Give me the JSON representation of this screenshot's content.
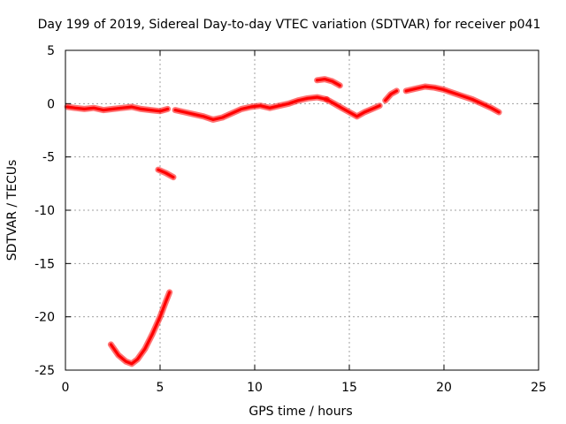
{
  "chart_data": {
    "type": "line",
    "title": "Day 199 of 2019, Sidereal Day-to-day VTEC variation (SDTVAR) for receiver p041",
    "xlabel": "GPS time / hours",
    "ylabel": "SDTVAR / TECUs",
    "xlim": [
      0,
      25
    ],
    "ylim": [
      -25,
      5
    ],
    "xticks": [
      0,
      5,
      10,
      15,
      20,
      25
    ],
    "yticks": [
      -25,
      -20,
      -15,
      -10,
      -5,
      0,
      5
    ],
    "grid": true,
    "color": "#ff0000",
    "series": [
      {
        "name": "main-trace-a",
        "x": [
          0.1,
          0.5,
          1.0,
          1.5,
          2.0,
          2.5,
          3.0,
          3.5,
          4.0,
          4.5,
          5.0,
          5.4
        ],
        "y": [
          -0.3,
          -0.4,
          -0.5,
          -0.4,
          -0.6,
          -0.5,
          -0.4,
          -0.3,
          -0.5,
          -0.6,
          -0.7,
          -0.5
        ]
      },
      {
        "name": "main-trace-b",
        "x": [
          5.8,
          6.3,
          6.8,
          7.3,
          7.8,
          8.3,
          8.8,
          9.3,
          9.8,
          10.3,
          10.8,
          11.3,
          11.8,
          12.3,
          12.8,
          13.3,
          13.8
        ],
        "y": [
          -0.6,
          -0.8,
          -1.0,
          -1.2,
          -1.5,
          -1.3,
          -0.9,
          -0.5,
          -0.3,
          -0.2,
          -0.4,
          -0.2,
          0.0,
          0.3,
          0.5,
          0.6,
          0.4
        ]
      },
      {
        "name": "main-trace-c",
        "x": [
          13.8,
          14.2,
          14.6,
          15.0,
          15.4,
          15.8,
          16.2,
          16.6
        ],
        "y": [
          0.4,
          0.0,
          -0.4,
          -0.8,
          -1.2,
          -0.8,
          -0.5,
          -0.2
        ]
      },
      {
        "name": "upper-short",
        "x": [
          13.3,
          13.7,
          14.1,
          14.5
        ],
        "y": [
          2.2,
          2.3,
          2.1,
          1.7
        ]
      },
      {
        "name": "right-trace",
        "x": [
          18.0,
          18.5,
          19.0,
          19.5,
          20.0,
          20.5,
          21.0,
          21.5,
          22.0,
          22.5,
          22.9
        ],
        "y": [
          1.2,
          1.4,
          1.6,
          1.5,
          1.3,
          1.0,
          0.7,
          0.4,
          0.0,
          -0.4,
          -0.8
        ]
      },
      {
        "name": "right-start",
        "x": [
          16.9,
          17.2,
          17.5
        ],
        "y": [
          0.3,
          0.9,
          1.2
        ]
      },
      {
        "name": "isolated-segment",
        "x": [
          4.9,
          5.3,
          5.7
        ],
        "y": [
          -6.2,
          -6.5,
          -6.9
        ]
      },
      {
        "name": "deep-dip",
        "x": [
          2.4,
          2.8,
          3.2,
          3.5,
          3.8,
          4.2,
          4.6,
          5.0,
          5.3,
          5.5
        ],
        "y": [
          -22.6,
          -23.6,
          -24.2,
          -24.4,
          -24.0,
          -23.0,
          -21.6,
          -20.0,
          -18.6,
          -17.7
        ]
      }
    ]
  }
}
